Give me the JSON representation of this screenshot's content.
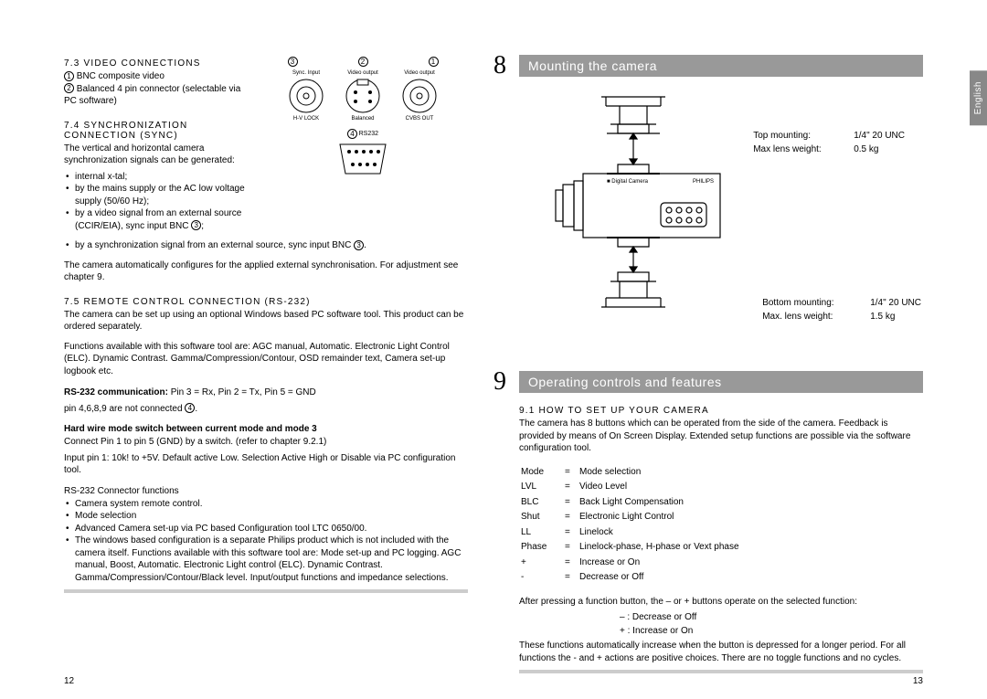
{
  "lang_tab": "English",
  "left_page": {
    "sub73": "7.3 VIDEO CONNECTIONS",
    "li73_1": "BNC composite video",
    "li73_2": "Balanced 4 pin connector (selectable via PC software)",
    "sub74": "7.4 SYNCHRONIZATION CONNECTION (SYNC)",
    "p74_intro": "The vertical and horizontal camera synchronization signals can be generated:",
    "li74_1": "internal x-tal;",
    "li74_2": "by the mains supply or the AC low voltage supply (50/60 Hz);",
    "li74_3a": "by a video signal from an external source (CCIR/EIA), sync input BNC ",
    "li74_3b": ";",
    "li74_4a": "by a synchronization signal from an external source, sync input BNC ",
    "li74_4b": ".",
    "p74_auto": "The camera automatically configures for the applied external synchronisation. For adjustment see chapter 9.",
    "sub75": "7.5 REMOTE CONTROL CONNECTION (RS-232)",
    "p75_a": "The camera can be set up using an optional Windows based PC software tool. This product can be ordered separately.",
    "p75_b": "Functions available with this software tool are: AGC manual, Automatic. Electronic Light Control (ELC). Dynamic Contrast. Gamma/Compression/Contour, OSD remainder text, Camera set-up logbook etc.",
    "rs232_comm_label": "RS-232 communication:",
    "rs232_comm_rest": " Pin 3 = Rx, Pin 2 = Tx, Pin 5 = GND",
    "rs232_pins_a": "pin 4,6,8,9 are not connected ",
    "rs232_pins_b": ".",
    "hardwire_title": "Hard wire mode switch between current mode and mode 3",
    "hardwire_a": "Connect Pin 1 to pin 5 (GND) by a switch. (refer to chapter 9.2.1)",
    "hardwire_b": "Input pin 1: 10k!   to +5V. Default active Low. Selection Active High or Disable via PC configuration tool.",
    "rs232fn_title": "RS-232 Connector functions",
    "rs232fn_1": "Camera system remote control.",
    "rs232fn_2": "Mode selection",
    "rs232fn_3": "Advanced Camera set-up via PC based Configuration tool LTC 0650/00.",
    "rs232fn_4": "The windows based configuration is a separate Philips product which is not included with the camera itself. Functions available with this software tool are: Mode set-up and PC logging. AGC manual, Boost, Automatic. Electronic Light control (ELC). Dynamic Contrast. Gamma/Compression/Contour/Black level. Input/output functions and impedance selections.",
    "conn_labels": {
      "c1_top": "Video output",
      "c1_bot": "CVBS OUT",
      "c2_top": "Video output",
      "c2_bot": "Balanced",
      "c3_top": "Sync. Input",
      "c3_bot": "H-V LOCK",
      "c4_label": "RS232"
    },
    "page_num": "12"
  },
  "right_page": {
    "sec8_num": "8",
    "sec8_title": "Mounting the camera",
    "top_mount_label": "Top mounting:",
    "top_mount_val": "1/4\"   20 UNC",
    "top_lens_label": "Max lens weight:",
    "top_lens_val": "0.5 kg",
    "bot_mount_label": "Bottom mounting:",
    "bot_mount_val": "1/4\"   20 UNC",
    "bot_lens_label": "Max. lens weight:",
    "bot_lens_val": "1.5 kg",
    "sec9_num": "9",
    "sec9_title": "Operating controls and features",
    "sub91": "9.1 HOW TO SET UP YOUR CAMERA",
    "p91_a": "The camera has 8 buttons which can be operated from the side of the camera. Feedback is provided by means of On Screen Display. Extended setup functions are possible via the software configuration tool.",
    "defs": [
      [
        "Mode",
        "=",
        "Mode selection"
      ],
      [
        "LVL",
        "=",
        "Video Level"
      ],
      [
        "BLC",
        "=",
        "Back Light Compensation"
      ],
      [
        "Shut",
        "=",
        "Electronic Light Control"
      ],
      [
        "LL",
        "=",
        "Linelock"
      ],
      [
        "Phase",
        "=",
        "Linelock-phase, H-phase or Vext phase"
      ],
      [
        "+",
        "=",
        "Increase  or  On"
      ],
      [
        "-",
        "=",
        "Decrease or Off"
      ]
    ],
    "p91_b": "After pressing a function button, the – or + buttons operate on the selected function:",
    "p91_b1": "– : Decrease or Off",
    "p91_b2": "+ : Increase or On",
    "p91_c": "These functions automatically increase when the button is depressed for a longer period. For all functions the - and + actions are positive choices. There are no toggle functions and no cycles.",
    "page_num": "13"
  }
}
